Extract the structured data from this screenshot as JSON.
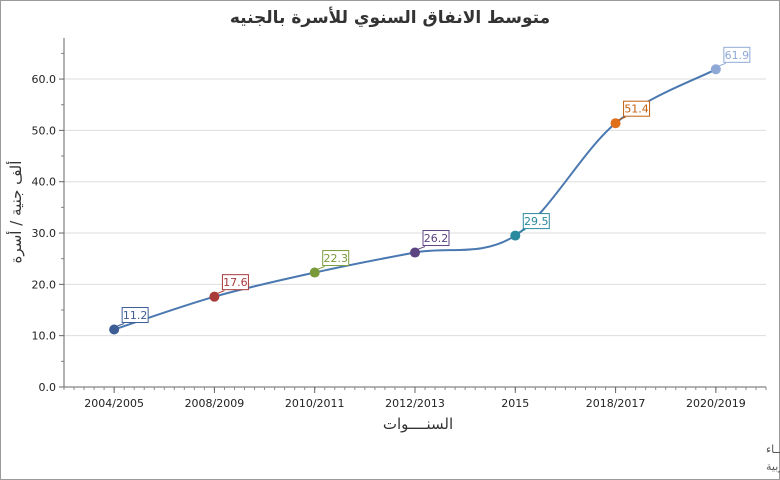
{
  "chart_data": {
    "type": "line",
    "title": "متوسط الانفاق السنوي للأسرة بالجنيه",
    "xlabel": "السنــــوات",
    "ylabel": "ألف جنية / أسرة",
    "categories": [
      "2004/2005",
      "2008/2009",
      "2010/2011",
      "2012/2013",
      "2015",
      "2018/2017",
      "2020/2019"
    ],
    "values": [
      11.2,
      17.6,
      22.3,
      26.2,
      29.5,
      51.4,
      61.9
    ],
    "value_labels": [
      "11.2",
      "17.6",
      "22.3",
      "26.2",
      "29.5",
      "51.4",
      "61.9"
    ],
    "yticks": [
      "0.0",
      "10.0",
      "20.0",
      "30.0",
      "40.0",
      "50.0",
      "60.0"
    ],
    "ylim": [
      0,
      68
    ],
    "grid": true,
    "legend": "none",
    "line_color": "#4a78b0",
    "point_colors": [
      "#3c5e94",
      "#a83a3a",
      "#7a9a3a",
      "#5c4480",
      "#2a8a9e",
      "#e0701a",
      "#8fa9d6"
    ],
    "label_text_colors": [
      "#3c5e94",
      "#a83a3a",
      "#7a9a3a",
      "#5c4480",
      "#2a8a9e",
      "#c0600f",
      "#8fa9d6"
    ]
  },
  "footer": {
    "line1": "حقوق الملكية للجهـــاز المركزي للتعبئة العـامة والأحصـــاء",
    "line2": "المصدر الأساسـي للأحصاءات الرسمية لجمهورية مصر العربية"
  }
}
